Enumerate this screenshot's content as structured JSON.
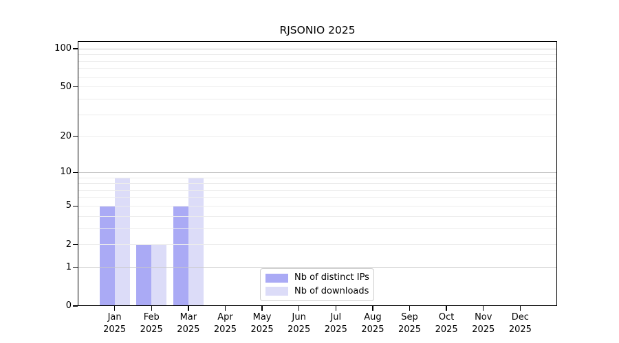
{
  "chart_data": {
    "type": "bar",
    "title": "RJSONIO 2025",
    "x_axis": {
      "months": [
        "Jan",
        "Feb",
        "Mar",
        "Apr",
        "May",
        "Jun",
        "Jul",
        "Aug",
        "Sep",
        "Oct",
        "Nov",
        "Dec"
      ],
      "year": "2025"
    },
    "y_axis": {
      "scale": "log1p",
      "tick_values": [
        0,
        1,
        2,
        5,
        10,
        20,
        50,
        100
      ],
      "major_gridlines": [
        1,
        10,
        100
      ],
      "minor_gridlines": [
        2,
        3,
        4,
        5,
        6,
        7,
        8,
        9,
        20,
        30,
        40,
        50,
        60,
        70,
        80,
        90
      ],
      "range": [
        0,
        115
      ],
      "grid": true
    },
    "series": [
      {
        "name": "Nb of distinct IPs",
        "color": "#aaaaf5",
        "values": [
          5,
          2,
          5,
          0,
          0,
          0,
          0,
          0,
          0,
          0,
          0,
          0
        ]
      },
      {
        "name": "Nb of downloads",
        "color": "#dcdcf8",
        "values": [
          9,
          2,
          9,
          0,
          0,
          0,
          0,
          0,
          0,
          0,
          0,
          0
        ]
      }
    ],
    "legend_position": "lower center",
    "colors": {
      "axis": "#000000",
      "major_gridline": "#c8c8c8",
      "minor_gridline": "#ececec",
      "background": "#ffffff",
      "legend_border": "#cccccc"
    }
  }
}
